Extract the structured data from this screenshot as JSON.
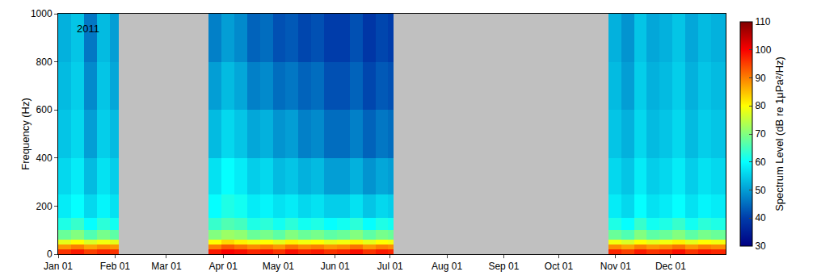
{
  "chart_data": {
    "type": "heatmap",
    "annotation": "2011",
    "y_label": "Frequency (Hz)",
    "colorbar_title": "Spectrum Level (dB re 1μPa²/Hz)",
    "x_edges": [
      "2011-01-01",
      "2011-01-08",
      "2011-01-15",
      "2011-01-22",
      "2011-01-29",
      "2011-02-03",
      "2011-03-24",
      "2011-03-31",
      "2011-04-07",
      "2011-04-14",
      "2011-04-21",
      "2011-04-28",
      "2011-05-05",
      "2011-05-12",
      "2011-05-19",
      "2011-05-26",
      "2011-06-02",
      "2011-06-09",
      "2011-06-16",
      "2011-06-23",
      "2011-06-30",
      "2011-07-03",
      "2011-10-28",
      "2011-11-04",
      "2011-11-11",
      "2011-11-18",
      "2011-11-25",
      "2011-12-02",
      "2011-12-09",
      "2011-12-16",
      "2011-12-23",
      "2011-12-31"
    ],
    "y_edges": [
      0,
      20,
      40,
      60,
      100,
      150,
      250,
      400,
      600,
      800,
      1000
    ],
    "cells": [
      [
        96,
        98,
        95,
        97,
        96,
        null,
        98,
        100,
        99,
        97,
        98,
        96,
        99,
        97,
        98,
        96,
        97,
        99,
        96,
        98,
        97,
        null,
        97,
        95,
        98,
        96,
        97,
        99,
        96,
        98,
        97
      ],
      [
        88,
        90,
        87,
        89,
        88,
        null,
        90,
        93,
        91,
        89,
        90,
        88,
        91,
        89,
        90,
        88,
        89,
        91,
        88,
        90,
        89,
        null,
        89,
        87,
        90,
        88,
        89,
        91,
        88,
        90,
        89
      ],
      [
        78,
        80,
        77,
        79,
        78,
        null,
        80,
        83,
        81,
        79,
        80,
        78,
        81,
        79,
        80,
        78,
        79,
        81,
        78,
        80,
        79,
        null,
        79,
        77,
        80,
        78,
        79,
        81,
        78,
        80,
        79
      ],
      [
        68,
        70,
        66,
        69,
        67,
        null,
        70,
        72,
        71,
        68,
        69,
        67,
        70,
        68,
        69,
        67,
        68,
        70,
        67,
        69,
        68,
        null,
        68,
        66,
        70,
        67,
        68,
        70,
        67,
        69,
        68
      ],
      [
        62,
        64,
        60,
        63,
        61,
        null,
        64,
        66,
        65,
        62,
        63,
        61,
        63,
        61,
        62,
        60,
        61,
        63,
        60,
        62,
        61,
        null,
        62,
        60,
        64,
        61,
        62,
        64,
        61,
        63,
        62
      ],
      [
        58,
        60,
        56,
        59,
        57,
        null,
        60,
        62,
        61,
        58,
        59,
        57,
        58,
        56,
        57,
        55,
        55,
        57,
        54,
        56,
        55,
        null,
        58,
        56,
        60,
        57,
        58,
        60,
        57,
        59,
        58
      ],
      [
        56,
        58,
        53,
        57,
        55,
        null,
        57,
        60,
        58,
        55,
        56,
        53,
        54,
        52,
        53,
        50,
        50,
        52,
        49,
        51,
        50,
        null,
        56,
        54,
        58,
        55,
        56,
        58,
        55,
        57,
        56
      ],
      [
        54,
        56,
        50,
        55,
        53,
        null,
        53,
        56,
        54,
        51,
        52,
        49,
        50,
        47,
        48,
        45,
        45,
        47,
        44,
        46,
        45,
        null,
        54,
        52,
        56,
        53,
        54,
        56,
        53,
        55,
        54
      ],
      [
        53,
        55,
        48,
        54,
        51,
        null,
        50,
        53,
        51,
        47,
        48,
        45,
        46,
        44,
        45,
        42,
        42,
        44,
        41,
        43,
        42,
        null,
        53,
        50,
        55,
        52,
        53,
        55,
        52,
        54,
        53
      ],
      [
        52,
        54,
        46,
        53,
        50,
        null,
        47,
        50,
        48,
        44,
        45,
        42,
        43,
        41,
        42,
        40,
        40,
        42,
        39,
        41,
        40,
        null,
        52,
        49,
        54,
        51,
        52,
        54,
        51,
        53,
        52
      ]
    ],
    "xlim": [
      "2011-01-01",
      "2011-12-31"
    ],
    "xticks": [
      {
        "value": "2011-01-01",
        "label": "Jan 01"
      },
      {
        "value": "2011-02-01",
        "label": "Feb 01"
      },
      {
        "value": "2011-03-01",
        "label": "Mar 01"
      },
      {
        "value": "2011-04-01",
        "label": "Apr 01"
      },
      {
        "value": "2011-05-01",
        "label": "May 01"
      },
      {
        "value": "2011-06-01",
        "label": "Jun 01"
      },
      {
        "value": "2011-07-01",
        "label": "Jul 01"
      },
      {
        "value": "2011-08-01",
        "label": "Aug 01"
      },
      {
        "value": "2011-09-01",
        "label": "Sep 01"
      },
      {
        "value": "2011-10-01",
        "label": "Oct 01"
      },
      {
        "value": "2011-11-01",
        "label": "Nov 01"
      },
      {
        "value": "2011-12-01",
        "label": "Dec 01"
      }
    ],
    "ylim": [
      0,
      1000
    ],
    "yticks": [
      0,
      200,
      400,
      600,
      800,
      1000
    ],
    "zlim": [
      30,
      110
    ],
    "zticks": [
      30,
      40,
      50,
      60,
      70,
      80,
      90,
      100,
      110
    ]
  }
}
